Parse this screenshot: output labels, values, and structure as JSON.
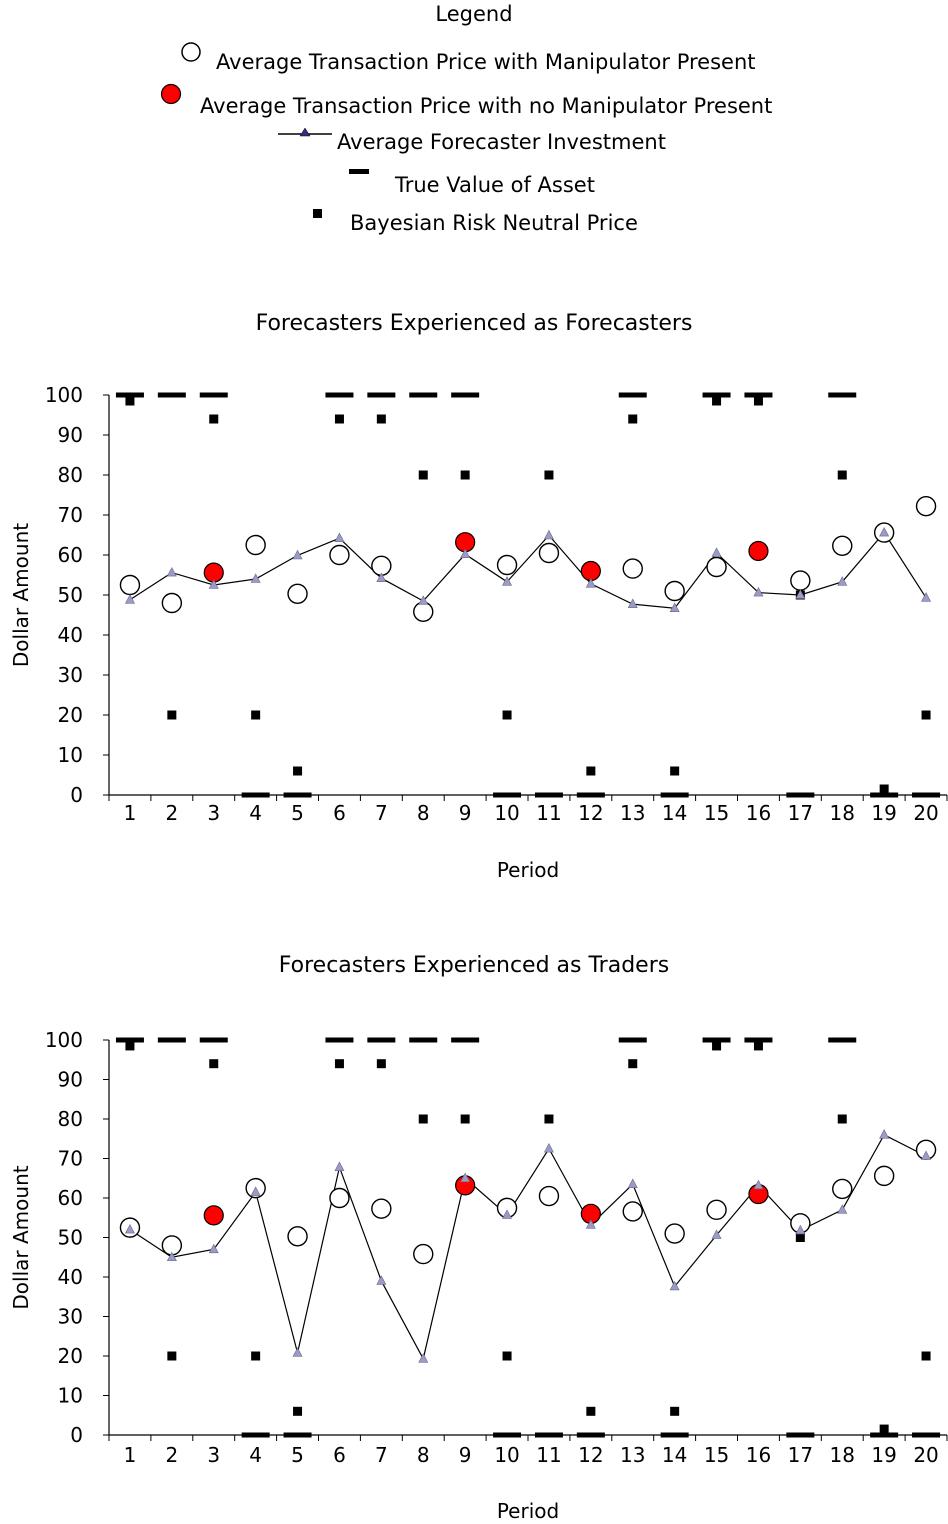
{
  "legend": {
    "title": "Legend",
    "items": [
      {
        "label": "Average Transaction Price with Manipulator Present",
        "icon": "open-circle-icon"
      },
      {
        "label": "Average Transaction Price with no Manipulator Present",
        "icon": "red-circle-icon"
      },
      {
        "label": "Average Forecaster Investment",
        "icon": "line-triangle-icon"
      },
      {
        "label": "True Value of Asset",
        "icon": "dash-icon"
      },
      {
        "label": "Bayesian Risk Neutral Price",
        "icon": "square-icon"
      }
    ]
  },
  "colors": {
    "manipulator_marker": "#000000",
    "no_manipulator_fill": "#ff0000",
    "investment_marker": "#9b9bc8",
    "line": "#000000"
  },
  "chart_data": [
    {
      "type": "scatter",
      "title": "Forecasters Experienced as Forecasters",
      "xlabel": "Period",
      "ylabel": "Dollar Amount",
      "ylim": [
        0,
        100
      ],
      "yticks": [
        0,
        10,
        20,
        30,
        40,
        50,
        60,
        70,
        80,
        90,
        100
      ],
      "categories": [
        "1",
        "2",
        "3",
        "4",
        "5",
        "6",
        "7",
        "8",
        "9",
        "10",
        "11",
        "12",
        "13",
        "14",
        "15",
        "16",
        "17",
        "18",
        "19",
        "20"
      ],
      "series": [
        {
          "name": "Average Transaction Price with Manipulator Present",
          "marker": "open-circle",
          "values": [
            52.5,
            48,
            null,
            62.5,
            50.3,
            60,
            57.3,
            45.8,
            null,
            57.5,
            60.5,
            null,
            56.6,
            51,
            57,
            null,
            53.6,
            62.3,
            65.6,
            72.2
          ]
        },
        {
          "name": "Average Transaction Price with no Manipulator Present",
          "marker": "red-circle",
          "values": [
            null,
            null,
            55.6,
            null,
            null,
            null,
            null,
            null,
            63.2,
            null,
            null,
            56,
            null,
            null,
            null,
            61,
            null,
            null,
            null,
            null
          ]
        },
        {
          "name": "Average Forecaster Investment",
          "marker": "line-triangle",
          "values": [
            48.8,
            55.6,
            52.5,
            54,
            59.9,
            64.2,
            54.2,
            48.5,
            60.2,
            53.3,
            64.9,
            52.8,
            47.7,
            46.7,
            60.5,
            50.6,
            50,
            53.3,
            65.6,
            49.3
          ]
        },
        {
          "name": "True Value of Asset",
          "marker": "dash",
          "values": [
            100,
            100,
            100,
            0,
            0,
            100,
            100,
            100,
            100,
            0,
            0,
            0,
            100,
            0,
            100,
            100,
            0,
            100,
            0,
            0
          ]
        },
        {
          "name": "Bayesian Risk Neutral Price",
          "marker": "square",
          "values": [
            98.5,
            20,
            94,
            20,
            6,
            94,
            94,
            80,
            80,
            20,
            80,
            6,
            94,
            6,
            98.5,
            98.5,
            50,
            80,
            1.5,
            20
          ]
        }
      ]
    },
    {
      "type": "scatter",
      "title": "Forecasters Experienced as Traders",
      "xlabel": "Period",
      "ylabel": "Dollar Amount",
      "ylim": [
        0,
        100
      ],
      "yticks": [
        0,
        10,
        20,
        30,
        40,
        50,
        60,
        70,
        80,
        90,
        100
      ],
      "categories": [
        "1",
        "2",
        "3",
        "4",
        "5",
        "6",
        "7",
        "8",
        "9",
        "10",
        "11",
        "12",
        "13",
        "14",
        "15",
        "16",
        "17",
        "18",
        "19",
        "20"
      ],
      "series": [
        {
          "name": "Average Transaction Price with Manipulator Present",
          "marker": "open-circle",
          "values": [
            52.5,
            48,
            null,
            62.5,
            50.3,
            60,
            57.3,
            45.8,
            null,
            57.5,
            60.5,
            null,
            56.6,
            51,
            57,
            null,
            53.6,
            62.3,
            65.6,
            72.2
          ]
        },
        {
          "name": "Average Transaction Price with no Manipulator Present",
          "marker": "red-circle",
          "values": [
            null,
            null,
            55.6,
            null,
            null,
            null,
            null,
            null,
            63.2,
            null,
            null,
            56,
            null,
            null,
            null,
            61,
            null,
            null,
            null,
            null
          ]
        },
        {
          "name": "Average Forecaster Investment",
          "marker": "line-triangle",
          "values": [
            52,
            45,
            47,
            61.5,
            20.8,
            67.8,
            39,
            19.3,
            65,
            55.7,
            72.5,
            53.2,
            63.5,
            37.6,
            50.6,
            63.2,
            51.8,
            57,
            76,
            70.6
          ]
        },
        {
          "name": "True Value of Asset",
          "marker": "dash",
          "values": [
            100,
            100,
            100,
            0,
            0,
            100,
            100,
            100,
            100,
            0,
            0,
            0,
            100,
            0,
            100,
            100,
            0,
            100,
            0,
            0
          ]
        },
        {
          "name": "Bayesian Risk Neutral Price",
          "marker": "square",
          "values": [
            98.5,
            20,
            94,
            20,
            6,
            94,
            94,
            80,
            80,
            20,
            80,
            6,
            94,
            6,
            98.5,
            98.5,
            50,
            80,
            1.5,
            20
          ]
        }
      ]
    }
  ]
}
